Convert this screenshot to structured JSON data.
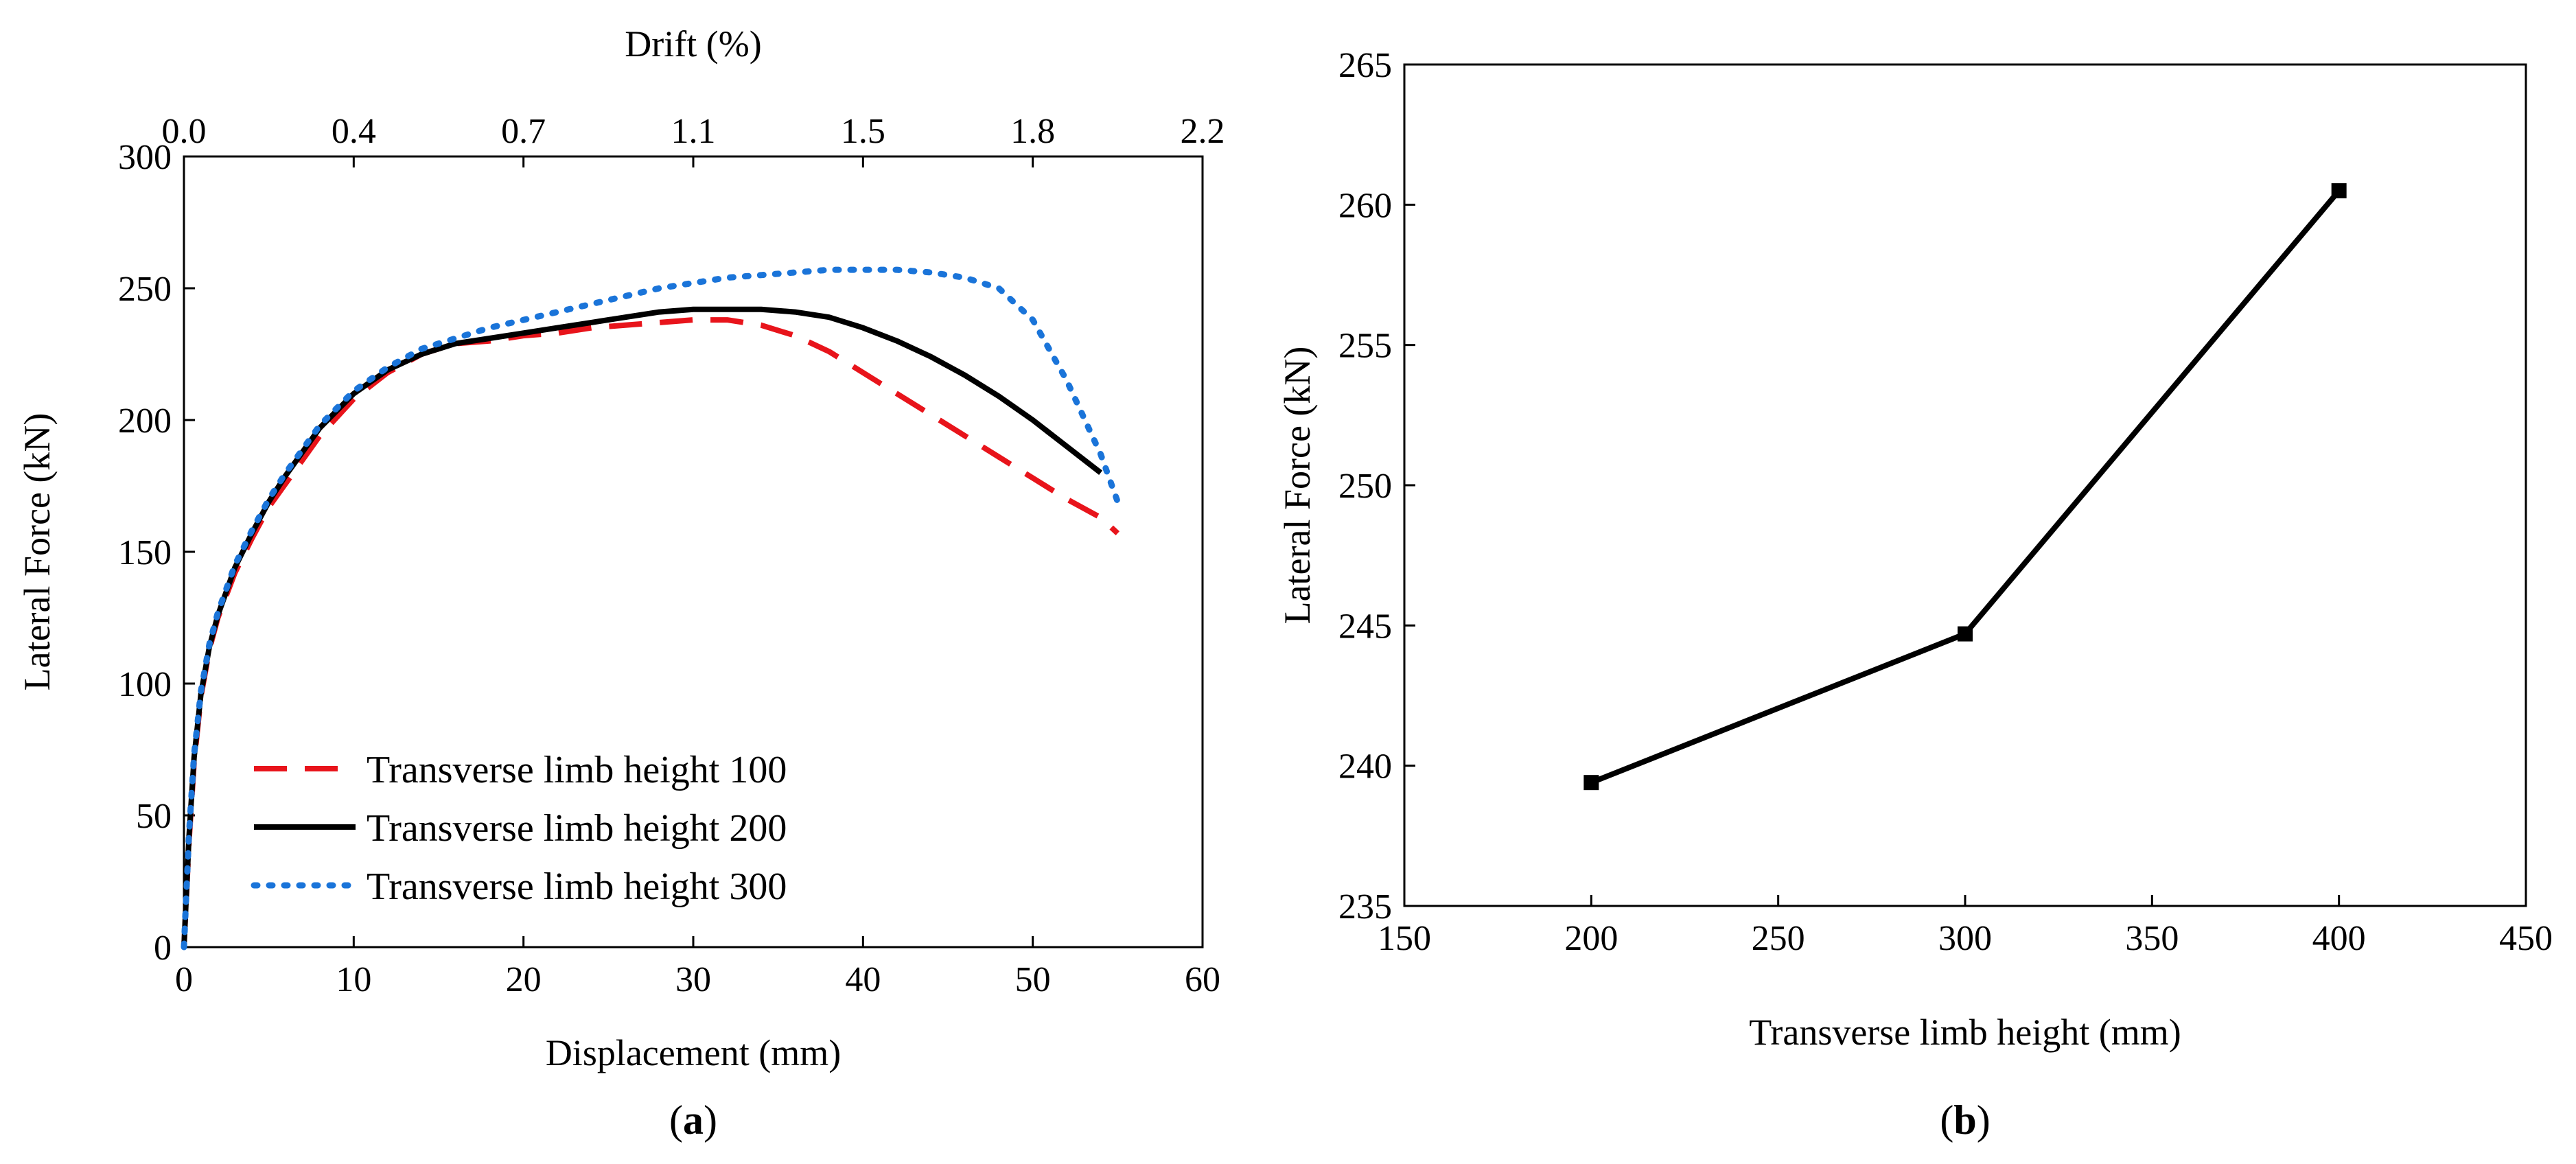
{
  "chart_data": [
    {
      "type": "line",
      "panel_label": "a",
      "xlabel": "Displacement (mm)",
      "ylabel": "Lateral Force (kN)",
      "top_xlabel": "Drift (%)",
      "xlim": [
        0,
        60
      ],
      "ylim": [
        0,
        300
      ],
      "x_ticks": [
        0,
        10,
        20,
        30,
        40,
        50,
        60
      ],
      "y_ticks": [
        0,
        50,
        100,
        150,
        200,
        250,
        300
      ],
      "top_ticks": [
        "0.0",
        "0.4",
        "0.7",
        "1.1",
        "1.5",
        "1.8",
        "2.2"
      ],
      "legend_position": "lower-left",
      "series": [
        {
          "name": "Transverse limb height 100",
          "color": "#e8141b",
          "style": "dashed",
          "x": [
            0,
            0.3,
            0.6,
            1,
            1.5,
            2,
            3,
            4,
            5,
            6,
            8,
            10,
            12,
            14,
            16,
            18,
            20,
            22,
            24,
            26,
            28,
            30,
            32,
            34,
            36,
            38,
            40,
            42,
            44,
            46,
            48,
            50,
            52,
            54,
            55
          ],
          "y": [
            0,
            40,
            70,
            95,
            113,
            125,
            142,
            155,
            167,
            176,
            194,
            208,
            218,
            225,
            229,
            230,
            232,
            233,
            235,
            236,
            237,
            238,
            238,
            236,
            232,
            226,
            218,
            210,
            202,
            194,
            186,
            178,
            170,
            163,
            157
          ]
        },
        {
          "name": "Transverse limb height 200",
          "color": "#000000",
          "style": "solid",
          "x": [
            0,
            0.3,
            0.6,
            1,
            1.5,
            2,
            3,
            4,
            5,
            6,
            8,
            10,
            12,
            14,
            16,
            18,
            20,
            22,
            24,
            26,
            28,
            30,
            32,
            34,
            36,
            38,
            40,
            42,
            44,
            46,
            48,
            50,
            52,
            54
          ],
          "y": [
            0,
            42,
            72,
            96,
            114,
            126,
            144,
            157,
            169,
            179,
            197,
            210,
            219,
            225,
            229,
            231,
            233,
            235,
            237,
            239,
            241,
            242,
            242,
            242,
            241,
            239,
            235,
            230,
            224,
            217,
            209,
            200,
            190,
            180
          ]
        },
        {
          "name": "Transverse limb height 300",
          "color": "#1a74d9",
          "style": "dotted",
          "x": [
            0,
            0.3,
            0.6,
            1,
            1.5,
            2,
            3,
            4,
            5,
            6,
            8,
            10,
            12,
            14,
            16,
            18,
            20,
            22,
            24,
            26,
            28,
            30,
            32,
            34,
            36,
            38,
            40,
            42,
            44,
            46,
            48,
            50,
            52,
            54,
            55
          ],
          "y": [
            0,
            43,
            73,
            97,
            115,
            127,
            145,
            158,
            170,
            180,
            198,
            211,
            220,
            227,
            231,
            235,
            238,
            241,
            244,
            247,
            250,
            252,
            254,
            255,
            256,
            257,
            257,
            257,
            256,
            254,
            250,
            238,
            215,
            187,
            169
          ]
        }
      ]
    },
    {
      "type": "line",
      "panel_label": "b",
      "xlabel": "Transverse limb height (mm)",
      "ylabel": "Lateral Force (kN)",
      "xlim": [
        150,
        450
      ],
      "ylim": [
        235,
        265
      ],
      "x_ticks": [
        150,
        200,
        250,
        300,
        350,
        400,
        450
      ],
      "y_ticks": [
        235,
        240,
        245,
        250,
        255,
        260,
        265
      ],
      "series": [
        {
          "name": "Lateral Force",
          "color": "#000000",
          "style": "solid-square-markers",
          "x": [
            200,
            300,
            400
          ],
          "y": [
            239.4,
            244.7,
            260.5
          ]
        }
      ]
    }
  ]
}
